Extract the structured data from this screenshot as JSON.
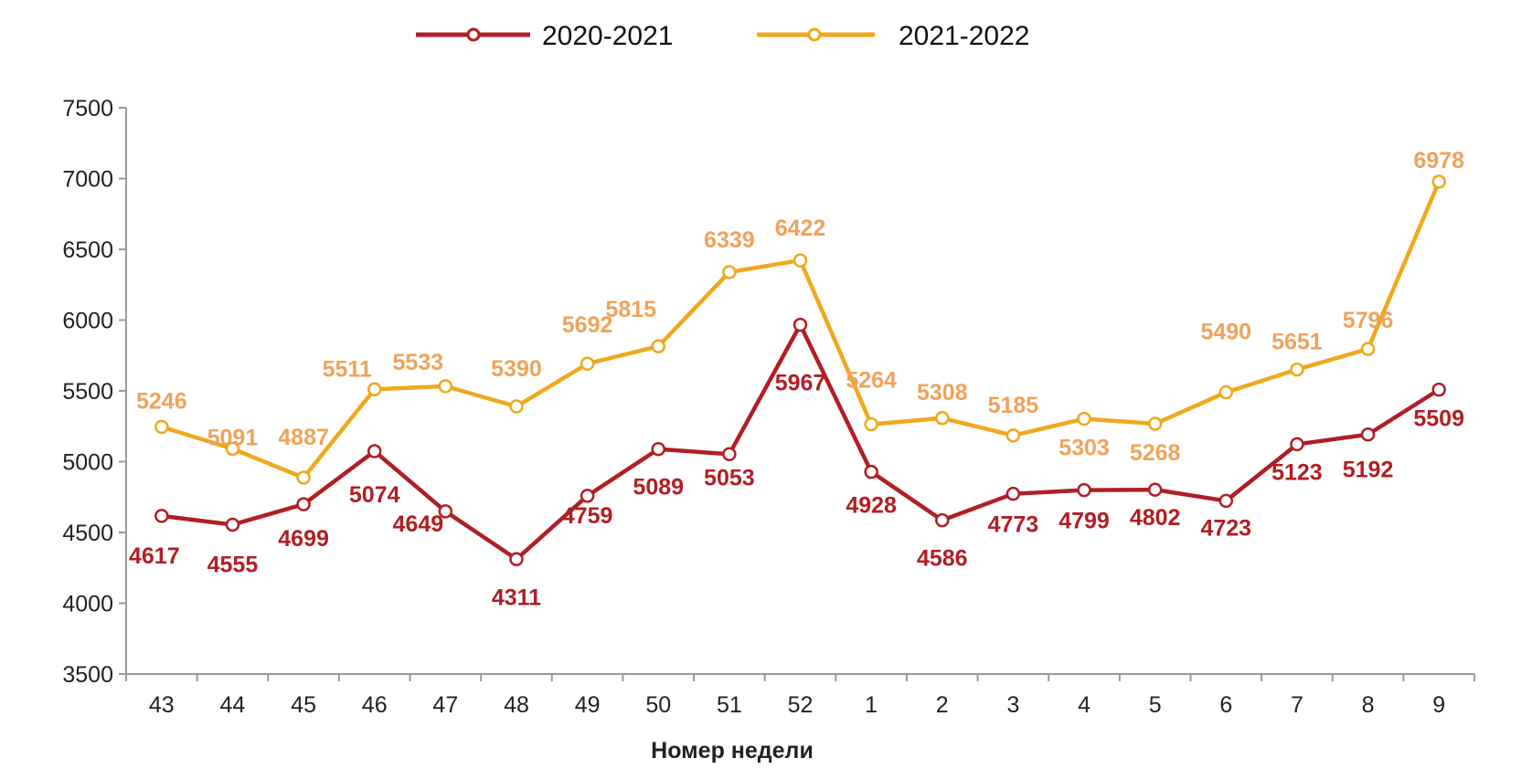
{
  "chart_data": {
    "type": "line",
    "xlabel": "Номер недели",
    "ylabel": "",
    "ylim": [
      3500,
      7500
    ],
    "yticks": [
      3500,
      4000,
      4500,
      5000,
      5500,
      6000,
      6500,
      7000,
      7500
    ],
    "categories": [
      "43",
      "44",
      "45",
      "46",
      "47",
      "48",
      "49",
      "50",
      "51",
      "52",
      "1",
      "2",
      "3",
      "4",
      "5",
      "6",
      "7",
      "8",
      "9"
    ],
    "legend_position": "top",
    "series": [
      {
        "name": "2020-2021",
        "color": "#b11e24",
        "values": [
          4617,
          4555,
          4699,
          5074,
          4649,
          4311,
          4759,
          5089,
          5053,
          5967,
          4928,
          4586,
          4773,
          4799,
          4802,
          4723,
          5123,
          5192,
          5509
        ],
        "labels": [
          "4617",
          "4555",
          "4699",
          "5074",
          "4649",
          "4311",
          "4759",
          "5089",
          "5053",
          "5967",
          "4928",
          "4586",
          "4773",
          "4799",
          "4802",
          "4723",
          "5123",
          "5192",
          "5509"
        ]
      },
      {
        "name": "2021-2022",
        "color": "#f0a81c",
        "label_color": "#f0a35a",
        "values": [
          5246,
          5091,
          4887,
          5511,
          5533,
          5390,
          5692,
          5815,
          6339,
          6422,
          5264,
          5308,
          5185,
          5303,
          5268,
          5490,
          5651,
          5796,
          6978
        ],
        "labels": [
          "5246",
          "5091",
          "4887",
          "5511",
          "5533",
          "5390",
          "5692",
          "5815",
          "6339",
          "6422",
          "5264",
          "5308",
          "5185",
          "5303",
          "5268",
          "5490",
          "5651",
          "5796",
          "6978"
        ]
      }
    ]
  }
}
